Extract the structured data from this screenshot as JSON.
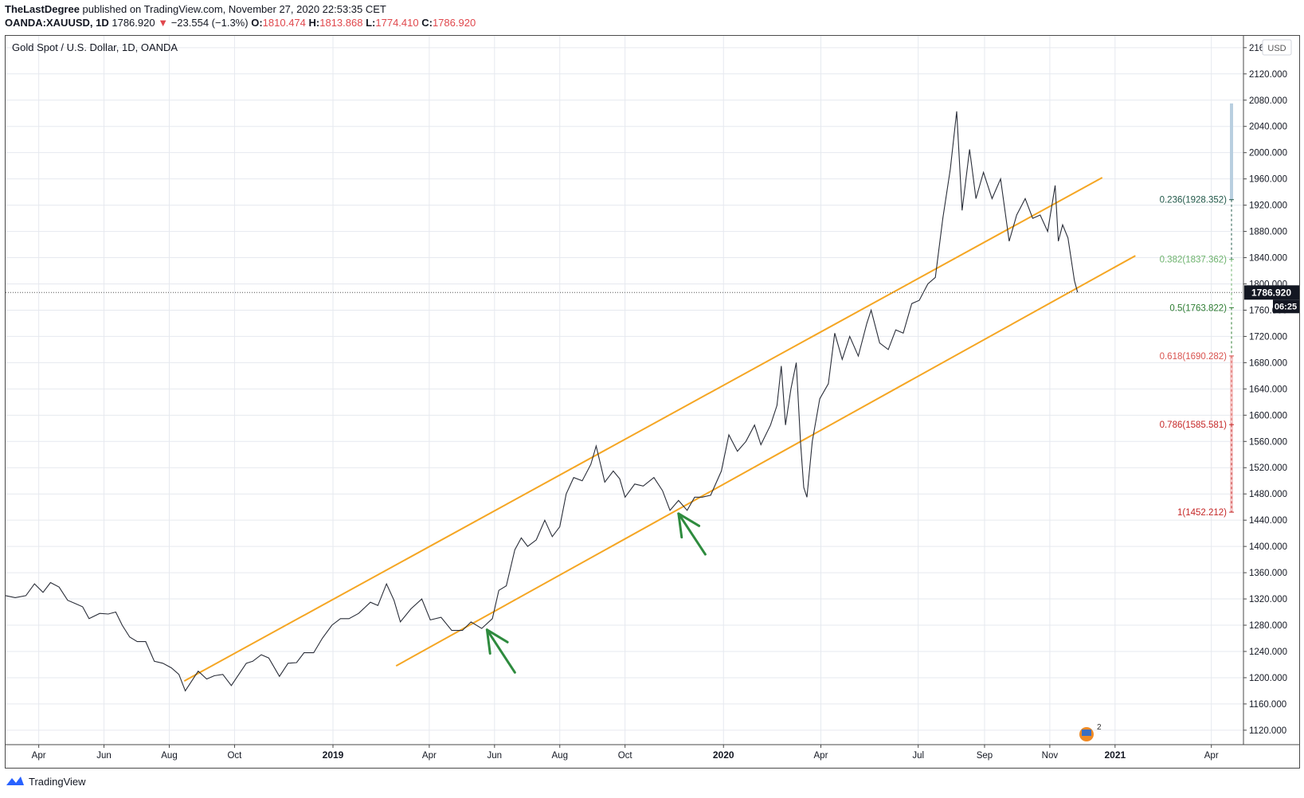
{
  "header": {
    "author": "TheLastDegree",
    "published_text": "published on TradingView.com, November 27, 2020 22:53:35 CET",
    "symbol": "OANDA:XAUUSD, 1D",
    "price": "1786.920",
    "change": "−23.554 (−1.3%)",
    "o_label": "O:",
    "o_value": "1810.474",
    "h_label": "H:",
    "h_value": "1813.868",
    "l_label": "L:",
    "l_value": "1774.410",
    "c_label": "C:",
    "c_value": "1786.920"
  },
  "chart_title": "Gold Spot / U.S. Dollar, 1D, OANDA",
  "currency_button": "USD",
  "last_price_label": "1786.920",
  "countdown_label": "06:25",
  "footer_brand": "TradingView",
  "badge_count": "2",
  "colors": {
    "price_line": "#2a2e39",
    "channel": "#f5a623",
    "arrows": "#2e8b3e",
    "grid": "#e6e9ef",
    "fib_0236": "#22594a",
    "fib_0382": "#6db36d",
    "fib_05": "#2e7d32",
    "fib_0618": "#d9534f",
    "fib_0786": "#c62828",
    "fib_1": "#c62828"
  },
  "chart_data": {
    "type": "line",
    "title": "Gold Spot / U.S. Dollar, 1D, OANDA",
    "y_axis": {
      "ticks": [
        1120,
        1160,
        1200,
        1240,
        1280,
        1320,
        1360,
        1400,
        1440,
        1480,
        1520,
        1560,
        1600,
        1640,
        1680,
        1720,
        1760,
        1800,
        1840,
        1880,
        1920,
        1960,
        2000,
        2040,
        2080,
        2120,
        2160
      ],
      "tick_labels": [
        "1120.000",
        "1160.000",
        "1200.000",
        "1240.000",
        "1280.000",
        "1320.000",
        "1360.000",
        "1400.000",
        "1440.000",
        "1480.000",
        "1520.000",
        "1560.000",
        "1600.000",
        "1640.000",
        "1680.000",
        "1720.000",
        "1760.000",
        "1800.000",
        "1840.000",
        "1880.000",
        "1920.000",
        "1960.000",
        "2000.000",
        "2040.000",
        "2080.000",
        "2120.000",
        "2160.000"
      ],
      "range": [
        1098,
        2178
      ]
    },
    "x_axis": {
      "range": [
        "2018-03-01",
        "2021-05-01"
      ],
      "ticks": [
        {
          "date": "2018-04-01",
          "label": "Apr"
        },
        {
          "date": "2018-06-01",
          "label": "Jun"
        },
        {
          "date": "2018-08-01",
          "label": "Aug"
        },
        {
          "date": "2018-10-01",
          "label": "Oct"
        },
        {
          "date": "2019-01-01",
          "label": "2019"
        },
        {
          "date": "2019-04-01",
          "label": "Apr"
        },
        {
          "date": "2019-06-01",
          "label": "Jun"
        },
        {
          "date": "2019-08-01",
          "label": "Aug"
        },
        {
          "date": "2019-10-01",
          "label": "Oct"
        },
        {
          "date": "2020-01-01",
          "label": "2020"
        },
        {
          "date": "2020-04-01",
          "label": "Apr"
        },
        {
          "date": "2020-07-01",
          "label": "Jul"
        },
        {
          "date": "2020-09-01",
          "label": "Sep"
        },
        {
          "date": "2020-11-01",
          "label": "Nov"
        },
        {
          "date": "2021-01-01",
          "label": "2021"
        },
        {
          "date": "2021-04-01",
          "label": "Apr"
        }
      ]
    },
    "series": [
      {
        "points": [
          [
            "2018-03-01",
            1325
          ],
          [
            "2018-03-10",
            1322
          ],
          [
            "2018-03-20",
            1325
          ],
          [
            "2018-03-28",
            1343
          ],
          [
            "2018-04-05",
            1330
          ],
          [
            "2018-04-12",
            1345
          ],
          [
            "2018-04-20",
            1338
          ],
          [
            "2018-04-28",
            1318
          ],
          [
            "2018-05-05",
            1313
          ],
          [
            "2018-05-12",
            1308
          ],
          [
            "2018-05-18",
            1290
          ],
          [
            "2018-05-28",
            1298
          ],
          [
            "2018-06-05",
            1297
          ],
          [
            "2018-06-12",
            1300
          ],
          [
            "2018-06-18",
            1280
          ],
          [
            "2018-06-25",
            1262
          ],
          [
            "2018-07-02",
            1255
          ],
          [
            "2018-07-10",
            1255
          ],
          [
            "2018-07-18",
            1225
          ],
          [
            "2018-07-26",
            1222
          ],
          [
            "2018-08-03",
            1215
          ],
          [
            "2018-08-10",
            1205
          ],
          [
            "2018-08-16",
            1180
          ],
          [
            "2018-08-22",
            1195
          ],
          [
            "2018-08-28",
            1210
          ],
          [
            "2018-09-05",
            1198
          ],
          [
            "2018-09-12",
            1203
          ],
          [
            "2018-09-20",
            1205
          ],
          [
            "2018-09-28",
            1188
          ],
          [
            "2018-10-05",
            1205
          ],
          [
            "2018-10-12",
            1222
          ],
          [
            "2018-10-18",
            1225
          ],
          [
            "2018-10-26",
            1235
          ],
          [
            "2018-11-02",
            1230
          ],
          [
            "2018-11-12",
            1202
          ],
          [
            "2018-11-20",
            1222
          ],
          [
            "2018-11-28",
            1223
          ],
          [
            "2018-12-05",
            1238
          ],
          [
            "2018-12-14",
            1238
          ],
          [
            "2018-12-22",
            1260
          ],
          [
            "2018-12-31",
            1280
          ],
          [
            "2019-01-08",
            1290
          ],
          [
            "2019-01-16",
            1290
          ],
          [
            "2019-01-25",
            1298
          ],
          [
            "2019-02-05",
            1315
          ],
          [
            "2019-02-12",
            1310
          ],
          [
            "2019-02-20",
            1343
          ],
          [
            "2019-02-27",
            1318
          ],
          [
            "2019-03-05",
            1285
          ],
          [
            "2019-03-15",
            1305
          ],
          [
            "2019-03-25",
            1320
          ],
          [
            "2019-04-02",
            1288
          ],
          [
            "2019-04-12",
            1292
          ],
          [
            "2019-04-22",
            1272
          ],
          [
            "2019-05-02",
            1272
          ],
          [
            "2019-05-10",
            1285
          ],
          [
            "2019-05-20",
            1275
          ],
          [
            "2019-05-30",
            1290
          ],
          [
            "2019-06-05",
            1333
          ],
          [
            "2019-06-12",
            1340
          ],
          [
            "2019-06-20",
            1395
          ],
          [
            "2019-06-26",
            1413
          ],
          [
            "2019-07-02",
            1400
          ],
          [
            "2019-07-10",
            1410
          ],
          [
            "2019-07-18",
            1440
          ],
          [
            "2019-07-25",
            1415
          ],
          [
            "2019-08-01",
            1430
          ],
          [
            "2019-08-07",
            1480
          ],
          [
            "2019-08-14",
            1505
          ],
          [
            "2019-08-22",
            1500
          ],
          [
            "2019-08-30",
            1525
          ],
          [
            "2019-09-04",
            1553
          ],
          [
            "2019-09-12",
            1498
          ],
          [
            "2019-09-20",
            1515
          ],
          [
            "2019-09-26",
            1503
          ],
          [
            "2019-10-01",
            1475
          ],
          [
            "2019-10-10",
            1495
          ],
          [
            "2019-10-18",
            1492
          ],
          [
            "2019-10-28",
            1505
          ],
          [
            "2019-11-05",
            1485
          ],
          [
            "2019-11-12",
            1455
          ],
          [
            "2019-11-20",
            1470
          ],
          [
            "2019-11-28",
            1455
          ],
          [
            "2019-12-05",
            1475
          ],
          [
            "2019-12-12",
            1475
          ],
          [
            "2019-12-20",
            1478
          ],
          [
            "2019-12-30",
            1515
          ],
          [
            "2020-01-06",
            1570
          ],
          [
            "2020-01-14",
            1545
          ],
          [
            "2020-01-22",
            1560
          ],
          [
            "2020-01-30",
            1585
          ],
          [
            "2020-02-05",
            1555
          ],
          [
            "2020-02-14",
            1585
          ],
          [
            "2020-02-20",
            1615
          ],
          [
            "2020-02-24",
            1675
          ],
          [
            "2020-02-28",
            1585
          ],
          [
            "2020-03-04",
            1640
          ],
          [
            "2020-03-09",
            1680
          ],
          [
            "2020-03-13",
            1560
          ],
          [
            "2020-03-16",
            1490
          ],
          [
            "2020-03-19",
            1475
          ],
          [
            "2020-03-24",
            1560
          ],
          [
            "2020-03-31",
            1625
          ],
          [
            "2020-04-08",
            1648
          ],
          [
            "2020-04-14",
            1725
          ],
          [
            "2020-04-21",
            1685
          ],
          [
            "2020-04-28",
            1720
          ],
          [
            "2020-05-06",
            1690
          ],
          [
            "2020-05-14",
            1740
          ],
          [
            "2020-05-18",
            1760
          ],
          [
            "2020-05-26",
            1710
          ],
          [
            "2020-06-03",
            1700
          ],
          [
            "2020-06-10",
            1730
          ],
          [
            "2020-06-17",
            1725
          ],
          [
            "2020-06-25",
            1770
          ],
          [
            "2020-07-02",
            1775
          ],
          [
            "2020-07-10",
            1800
          ],
          [
            "2020-07-17",
            1810
          ],
          [
            "2020-07-24",
            1900
          ],
          [
            "2020-07-31",
            1975
          ],
          [
            "2020-08-06",
            2063
          ],
          [
            "2020-08-11",
            1912
          ],
          [
            "2020-08-18",
            2005
          ],
          [
            "2020-08-24",
            1930
          ],
          [
            "2020-08-31",
            1970
          ],
          [
            "2020-09-08",
            1930
          ],
          [
            "2020-09-16",
            1960
          ],
          [
            "2020-09-24",
            1865
          ],
          [
            "2020-10-01",
            1905
          ],
          [
            "2020-10-09",
            1930
          ],
          [
            "2020-10-16",
            1900
          ],
          [
            "2020-10-23",
            1905
          ],
          [
            "2020-10-30",
            1880
          ],
          [
            "2020-11-06",
            1950
          ],
          [
            "2020-11-09",
            1865
          ],
          [
            "2020-11-13",
            1890
          ],
          [
            "2020-11-18",
            1870
          ],
          [
            "2020-11-24",
            1805
          ],
          [
            "2020-11-27",
            1787
          ]
        ]
      }
    ],
    "channel_lines": [
      {
        "from": [
          "2018-08-15",
          1195
        ],
        "to": [
          "2020-12-20",
          1962
        ]
      },
      {
        "from": [
          "2019-03-01",
          1218
        ],
        "to": [
          "2021-01-20",
          1843
        ]
      }
    ],
    "fib_levels": [
      {
        "ratio": "0.236",
        "value": 1928.352,
        "label": "0.236(1928.352)"
      },
      {
        "ratio": "0.382",
        "value": 1837.362,
        "label": "0.382(1837.362)"
      },
      {
        "ratio": "0.5",
        "value": 1763.822,
        "label": "0.5(1763.822)"
      },
      {
        "ratio": "0.618",
        "value": 1690.282,
        "label": "0.618(1690.282)"
      },
      {
        "ratio": "0.786",
        "value": 1585.581,
        "label": "0.786(1585.581)"
      },
      {
        "ratio": "1",
        "value": 1452.212,
        "label": "1(1452.212)"
      }
    ],
    "fib_top": 2075,
    "last_price": 1786.92,
    "arrows": [
      {
        "tip": [
          "2019-05-25",
          1273
        ],
        "tail": [
          "2019-06-20",
          1208
        ]
      },
      {
        "tip": [
          "2019-11-20",
          1450
        ],
        "tail": [
          "2019-12-15",
          1388
        ]
      }
    ]
  }
}
